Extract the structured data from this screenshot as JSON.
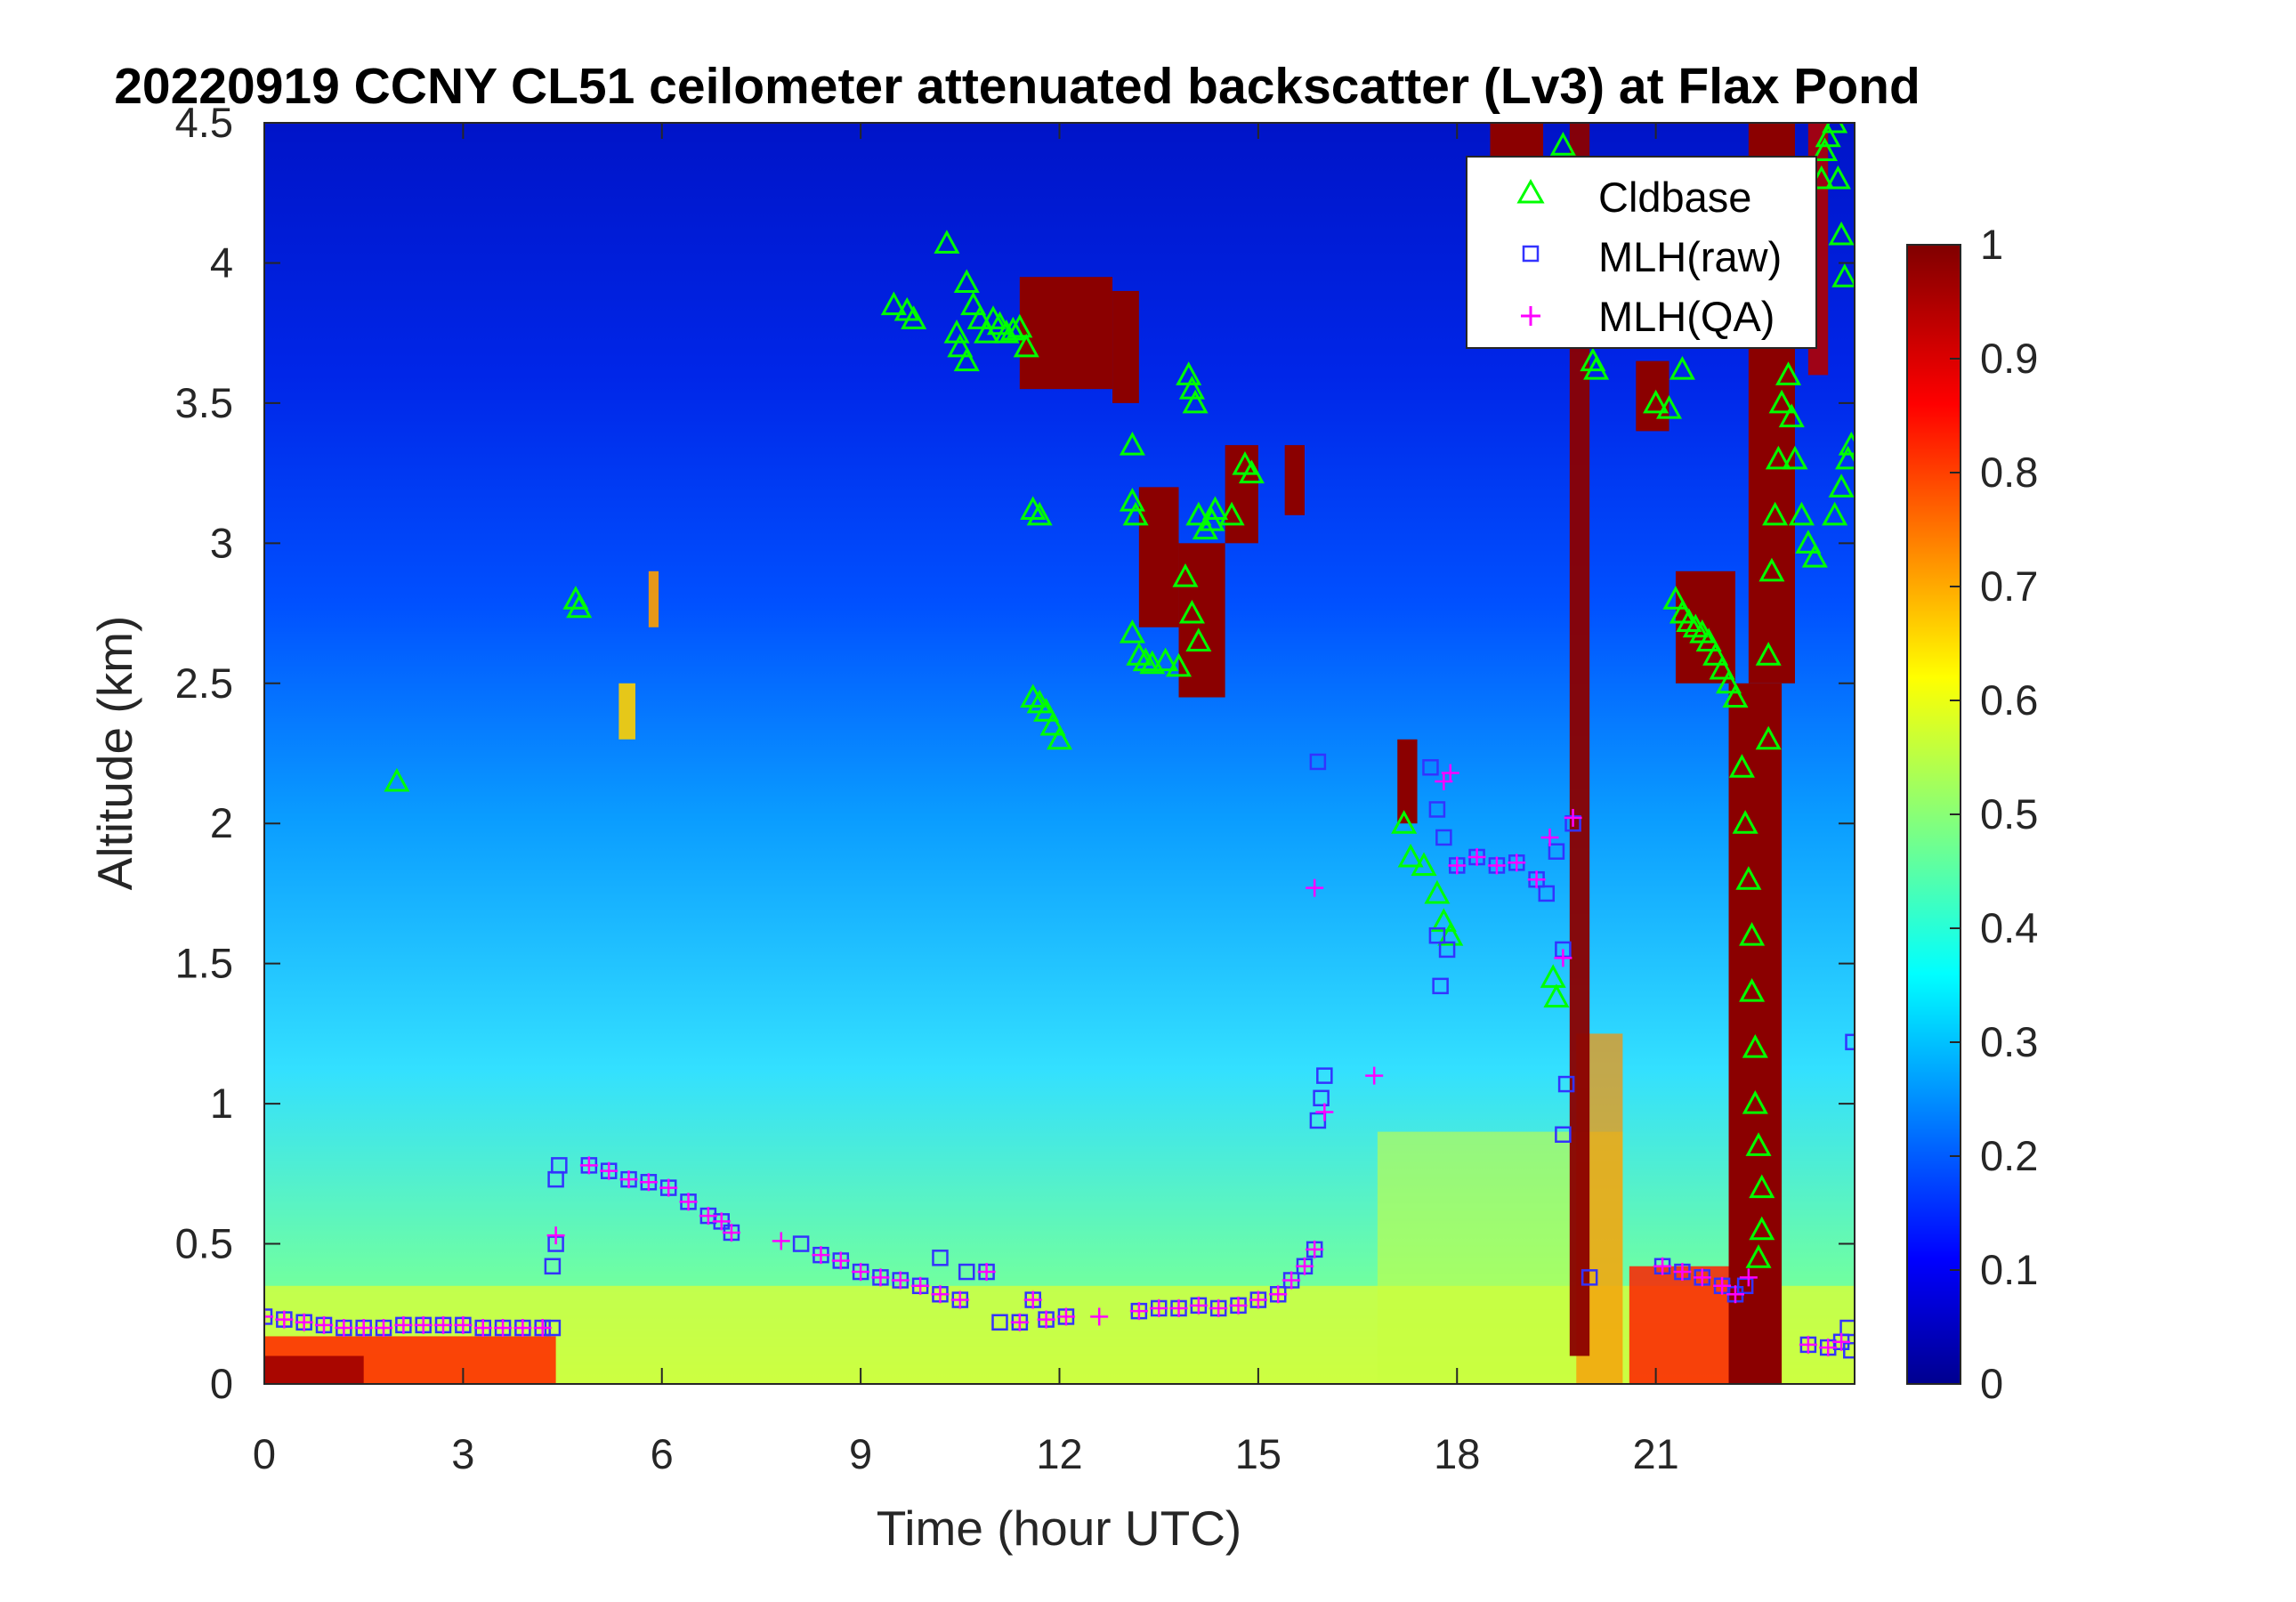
{
  "chart_data": {
    "type": "heatmap",
    "title": "20220919 CCNY CL51 ceilometer attenuated backscatter (Lv3) at Flax Pond",
    "xlabel": "Time (hour UTC)",
    "ylabel": "Altitude (km)",
    "xlim": [
      0,
      24
    ],
    "ylim": [
      0,
      4.5
    ],
    "x_ticks": [
      "0",
      "3",
      "6",
      "9",
      "12",
      "15",
      "18",
      "21"
    ],
    "y_ticks": [
      "0",
      "0.5",
      "1",
      "1.5",
      "2",
      "2.5",
      "3",
      "3.5",
      "4",
      "4.5"
    ],
    "colorbar": {
      "colormap": "jet",
      "range": [
        0,
        1
      ],
      "ticks": [
        "0",
        "0.1",
        "0.2",
        "0.3",
        "0.4",
        "0.5",
        "0.6",
        "0.7",
        "0.8",
        "0.9",
        "1"
      ]
    },
    "legend_position": "top-right",
    "background_field": {
      "description_only": false,
      "surface_layer_value": 0.6,
      "upper_value": 0.12
    },
    "series": [
      {
        "name": "Cldbase",
        "marker": "triangle",
        "color": "#00ff00",
        "points": [
          [
            2.0,
            2.15
          ],
          [
            4.7,
            2.8
          ],
          [
            4.75,
            2.77
          ],
          [
            9.5,
            3.85
          ],
          [
            9.7,
            3.83
          ],
          [
            9.8,
            3.8
          ],
          [
            10.3,
            4.07
          ],
          [
            10.45,
            3.75
          ],
          [
            10.5,
            3.7
          ],
          [
            10.6,
            3.65
          ],
          [
            10.6,
            3.93
          ],
          [
            10.7,
            3.85
          ],
          [
            10.8,
            3.8
          ],
          [
            10.9,
            3.75
          ],
          [
            11.0,
            3.8
          ],
          [
            11.1,
            3.78
          ],
          [
            11.2,
            3.75
          ],
          [
            11.3,
            3.76
          ],
          [
            11.4,
            3.77
          ],
          [
            11.5,
            3.7
          ],
          [
            11.6,
            3.12
          ],
          [
            11.7,
            3.1
          ],
          [
            11.6,
            2.45
          ],
          [
            11.7,
            2.43
          ],
          [
            11.8,
            2.4
          ],
          [
            11.9,
            2.35
          ],
          [
            12.0,
            2.3
          ],
          [
            13.1,
            3.35
          ],
          [
            13.1,
            3.15
          ],
          [
            13.15,
            3.1
          ],
          [
            13.1,
            2.68
          ],
          [
            13.2,
            2.6
          ],
          [
            13.3,
            2.58
          ],
          [
            13.4,
            2.57
          ],
          [
            13.6,
            2.58
          ],
          [
            13.8,
            2.56
          ],
          [
            13.9,
            2.88
          ],
          [
            14.0,
            2.75
          ],
          [
            14.1,
            2.65
          ],
          [
            14.1,
            3.1
          ],
          [
            14.2,
            3.05
          ],
          [
            14.3,
            3.08
          ],
          [
            14.35,
            3.12
          ],
          [
            14.6,
            3.1
          ],
          [
            13.95,
            3.6
          ],
          [
            14.0,
            3.55
          ],
          [
            14.05,
            3.5
          ],
          [
            14.8,
            3.28
          ],
          [
            14.9,
            3.25
          ],
          [
            17.2,
            2.0
          ],
          [
            17.3,
            1.88
          ],
          [
            17.5,
            1.85
          ],
          [
            17.7,
            1.75
          ],
          [
            17.8,
            1.65
          ],
          [
            17.9,
            1.6
          ],
          [
            19.45,
            1.45
          ],
          [
            19.5,
            1.38
          ],
          [
            19.6,
            4.42
          ],
          [
            20.05,
            3.65
          ],
          [
            20.1,
            3.62
          ],
          [
            21.0,
            3.5
          ],
          [
            21.2,
            3.48
          ],
          [
            21.4,
            3.62
          ],
          [
            21.3,
            2.8
          ],
          [
            21.4,
            2.75
          ],
          [
            21.5,
            2.72
          ],
          [
            21.6,
            2.7
          ],
          [
            21.7,
            2.68
          ],
          [
            21.8,
            2.65
          ],
          [
            21.9,
            2.6
          ],
          [
            22.0,
            2.55
          ],
          [
            22.1,
            2.5
          ],
          [
            22.2,
            2.45
          ],
          [
            22.3,
            2.2
          ],
          [
            22.35,
            2.0
          ],
          [
            22.4,
            1.8
          ],
          [
            22.45,
            1.6
          ],
          [
            22.45,
            1.4
          ],
          [
            22.5,
            1.2
          ],
          [
            22.5,
            1.0
          ],
          [
            22.55,
            0.85
          ],
          [
            22.6,
            0.7
          ],
          [
            22.6,
            0.55
          ],
          [
            22.55,
            0.45
          ],
          [
            22.7,
            2.3
          ],
          [
            22.7,
            2.6
          ],
          [
            22.75,
            2.9
          ],
          [
            22.8,
            3.1
          ],
          [
            22.85,
            3.3
          ],
          [
            22.9,
            3.5
          ],
          [
            23.0,
            3.6
          ],
          [
            23.05,
            3.45
          ],
          [
            23.1,
            3.3
          ],
          [
            23.2,
            3.1
          ],
          [
            23.3,
            3.0
          ],
          [
            23.4,
            2.95
          ],
          [
            23.5,
            4.3
          ],
          [
            23.55,
            4.4
          ],
          [
            23.6,
            4.45
          ],
          [
            23.7,
            4.5
          ],
          [
            23.75,
            4.3
          ],
          [
            23.8,
            4.1
          ],
          [
            23.85,
            3.95
          ],
          [
            23.7,
            3.1
          ],
          [
            23.8,
            3.2
          ],
          [
            23.9,
            3.3
          ],
          [
            23.95,
            3.35
          ]
        ]
      },
      {
        "name": "MLH(raw)",
        "marker": "square",
        "color": "#3333ff",
        "points": [
          [
            0.0,
            0.24
          ],
          [
            0.3,
            0.23
          ],
          [
            0.6,
            0.22
          ],
          [
            0.9,
            0.21
          ],
          [
            1.2,
            0.2
          ],
          [
            1.5,
            0.2
          ],
          [
            1.8,
            0.2
          ],
          [
            2.1,
            0.21
          ],
          [
            2.4,
            0.21
          ],
          [
            2.7,
            0.21
          ],
          [
            3.0,
            0.21
          ],
          [
            3.3,
            0.2
          ],
          [
            3.6,
            0.2
          ],
          [
            3.9,
            0.2
          ],
          [
            4.2,
            0.2
          ],
          [
            4.35,
            0.2
          ],
          [
            4.35,
            0.42
          ],
          [
            4.4,
            0.5
          ],
          [
            4.4,
            0.73
          ],
          [
            4.45,
            0.78
          ],
          [
            4.9,
            0.78
          ],
          [
            5.2,
            0.76
          ],
          [
            5.5,
            0.73
          ],
          [
            5.8,
            0.72
          ],
          [
            6.1,
            0.7
          ],
          [
            6.4,
            0.65
          ],
          [
            6.7,
            0.6
          ],
          [
            6.9,
            0.58
          ],
          [
            7.05,
            0.54
          ],
          [
            8.1,
            0.5
          ],
          [
            8.4,
            0.46
          ],
          [
            8.7,
            0.44
          ],
          [
            9.0,
            0.4
          ],
          [
            9.3,
            0.38
          ],
          [
            9.6,
            0.37
          ],
          [
            9.9,
            0.35
          ],
          [
            10.2,
            0.32
          ],
          [
            10.2,
            0.45
          ],
          [
            10.5,
            0.3
          ],
          [
            10.6,
            0.4
          ],
          [
            10.9,
            0.4
          ],
          [
            11.1,
            0.22
          ],
          [
            11.4,
            0.22
          ],
          [
            11.6,
            0.3
          ],
          [
            11.8,
            0.23
          ],
          [
            12.1,
            0.24
          ],
          [
            13.2,
            0.26
          ],
          [
            13.5,
            0.27
          ],
          [
            13.8,
            0.27
          ],
          [
            14.1,
            0.28
          ],
          [
            14.4,
            0.27
          ],
          [
            14.7,
            0.28
          ],
          [
            15.0,
            0.3
          ],
          [
            15.3,
            0.32
          ],
          [
            15.5,
            0.37
          ],
          [
            15.7,
            0.42
          ],
          [
            15.85,
            0.48
          ],
          [
            15.9,
            0.94
          ],
          [
            15.95,
            1.02
          ],
          [
            16.0,
            1.1
          ],
          [
            15.9,
            2.22
          ],
          [
            17.7,
            1.6
          ],
          [
            17.75,
            1.42
          ],
          [
            17.85,
            1.55
          ],
          [
            17.6,
            2.2
          ],
          [
            17.7,
            2.05
          ],
          [
            17.8,
            1.95
          ],
          [
            18.0,
            1.85
          ],
          [
            18.3,
            1.88
          ],
          [
            18.6,
            1.85
          ],
          [
            18.9,
            1.86
          ],
          [
            19.2,
            1.8
          ],
          [
            19.35,
            1.75
          ],
          [
            19.5,
            1.9
          ],
          [
            19.6,
            1.55
          ],
          [
            19.6,
            0.89
          ],
          [
            19.65,
            1.07
          ],
          [
            19.75,
            2.0
          ],
          [
            20.0,
            0.38
          ],
          [
            21.1,
            0.42
          ],
          [
            21.4,
            0.4
          ],
          [
            21.7,
            0.38
          ],
          [
            22.0,
            0.35
          ],
          [
            22.2,
            0.32
          ],
          [
            22.35,
            0.35
          ],
          [
            23.3,
            0.14
          ],
          [
            23.6,
            0.13
          ],
          [
            23.8,
            0.15
          ],
          [
            23.9,
            0.2
          ],
          [
            23.95,
            0.12
          ],
          [
            23.98,
            1.22
          ]
        ]
      },
      {
        "name": "MLH(QA)",
        "marker": "plus",
        "color": "#ff00ff",
        "points": [
          [
            0.0,
            0.24
          ],
          [
            0.3,
            0.23
          ],
          [
            0.6,
            0.22
          ],
          [
            0.9,
            0.21
          ],
          [
            1.2,
            0.2
          ],
          [
            1.5,
            0.2
          ],
          [
            1.8,
            0.2
          ],
          [
            2.1,
            0.21
          ],
          [
            2.4,
            0.21
          ],
          [
            2.7,
            0.21
          ],
          [
            3.0,
            0.21
          ],
          [
            3.3,
            0.2
          ],
          [
            3.6,
            0.2
          ],
          [
            3.9,
            0.2
          ],
          [
            4.2,
            0.2
          ],
          [
            4.4,
            0.53
          ],
          [
            4.9,
            0.78
          ],
          [
            5.2,
            0.76
          ],
          [
            5.5,
            0.73
          ],
          [
            5.8,
            0.72
          ],
          [
            6.1,
            0.7
          ],
          [
            6.4,
            0.65
          ],
          [
            6.7,
            0.6
          ],
          [
            6.9,
            0.58
          ],
          [
            7.05,
            0.54
          ],
          [
            7.8,
            0.51
          ],
          [
            8.4,
            0.46
          ],
          [
            8.7,
            0.44
          ],
          [
            9.0,
            0.4
          ],
          [
            9.3,
            0.38
          ],
          [
            9.6,
            0.37
          ],
          [
            9.9,
            0.35
          ],
          [
            10.2,
            0.32
          ],
          [
            10.5,
            0.3
          ],
          [
            10.9,
            0.4
          ],
          [
            11.4,
            0.22
          ],
          [
            11.6,
            0.3
          ],
          [
            11.8,
            0.23
          ],
          [
            12.1,
            0.24
          ],
          [
            12.6,
            0.24
          ],
          [
            13.2,
            0.26
          ],
          [
            13.5,
            0.27
          ],
          [
            13.8,
            0.27
          ],
          [
            14.1,
            0.28
          ],
          [
            14.4,
            0.27
          ],
          [
            14.7,
            0.28
          ],
          [
            15.0,
            0.3
          ],
          [
            15.3,
            0.32
          ],
          [
            15.5,
            0.37
          ],
          [
            15.7,
            0.42
          ],
          [
            15.85,
            0.48
          ],
          [
            15.85,
            1.77
          ],
          [
            16.0,
            0.97
          ],
          [
            16.75,
            1.1
          ],
          [
            17.8,
            2.15
          ],
          [
            17.9,
            2.18
          ],
          [
            18.0,
            1.85
          ],
          [
            18.3,
            1.88
          ],
          [
            18.6,
            1.85
          ],
          [
            18.9,
            1.86
          ],
          [
            19.2,
            1.8
          ],
          [
            19.4,
            1.95
          ],
          [
            19.6,
            1.52
          ],
          [
            19.75,
            2.02
          ],
          [
            21.1,
            0.42
          ],
          [
            21.4,
            0.4
          ],
          [
            21.7,
            0.38
          ],
          [
            22.0,
            0.35
          ],
          [
            22.2,
            0.32
          ],
          [
            22.4,
            0.38
          ],
          [
            23.3,
            0.14
          ],
          [
            23.6,
            0.13
          ],
          [
            23.8,
            0.15
          ]
        ]
      }
    ]
  }
}
